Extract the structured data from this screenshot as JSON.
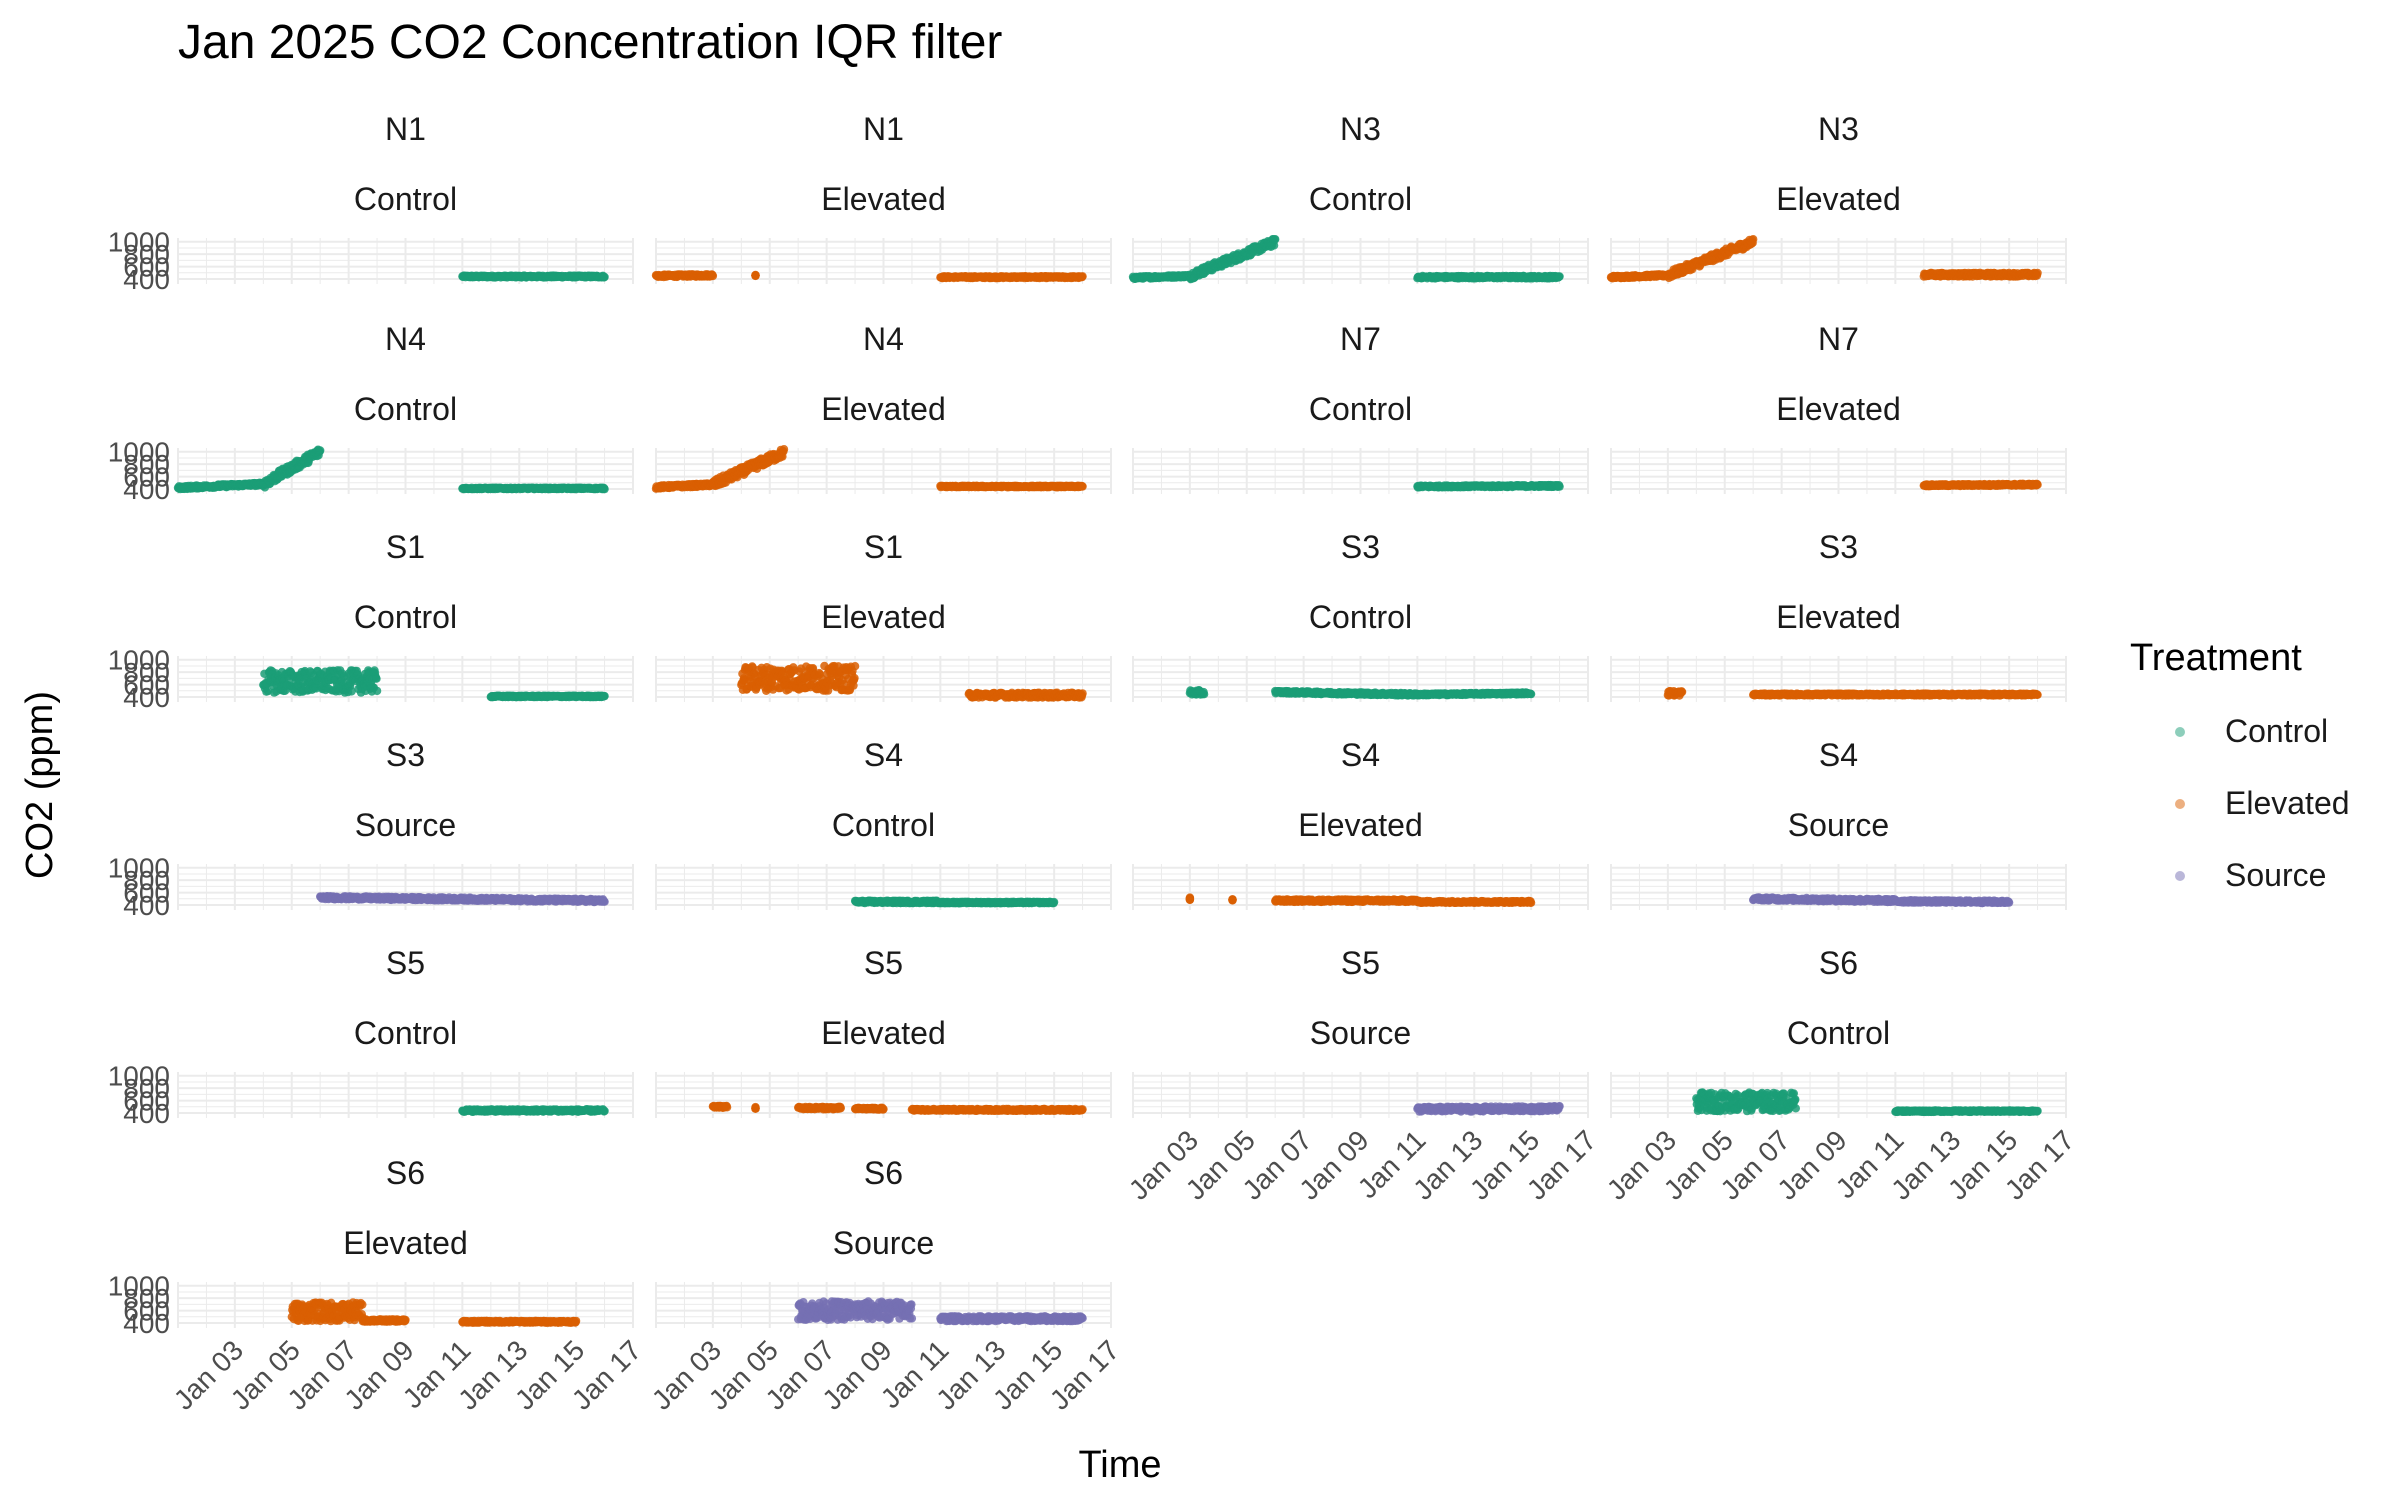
{
  "chart_data": {
    "type": "scatter",
    "title": "Jan 2025 CO2 Concentration IQR filter",
    "xlabel": "Time",
    "ylabel": "CO2 (ppm)",
    "x_ticks": [
      "Jan 03",
      "Jan 05",
      "Jan 07",
      "Jan 09",
      "Jan 11",
      "Jan 13",
      "Jan 15",
      "Jan 17"
    ],
    "y_ticks": [
      400,
      600,
      800,
      1000
    ],
    "y_tick_labels": [
      "400",
      "600",
      "800",
      "1000"
    ],
    "xlim": [
      "2025-01-01",
      "2025-01-17"
    ],
    "ylim": [
      400,
      1000
    ],
    "grid": true,
    "legend": {
      "title": "Treatment",
      "placement": "right",
      "entries": [
        {
          "name": "Control",
          "color": "#1b9e77"
        },
        {
          "name": "Elevated",
          "color": "#d95f02"
        },
        {
          "name": "Source",
          "color": "#7570b3"
        }
      ]
    },
    "panels": [
      {
        "site": "N1",
        "treatment": "Control",
        "segments": [
          {
            "x": [
              "2025-01-11",
              "2025-01-16"
            ],
            "y": [
              440,
              440
            ],
            "noise": 15,
            "type": "flat"
          }
        ]
      },
      {
        "site": "N1",
        "treatment": "Elevated",
        "segments": [
          {
            "x": [
              "2025-01-01",
              "2025-01-03"
            ],
            "y": [
              450,
              460
            ],
            "noise": 20,
            "type": "flat"
          },
          {
            "x": [
              "2025-01-04.5",
              "2025-01-04.5"
            ],
            "y": [
              460,
              460
            ],
            "noise": 10,
            "type": "flat"
          },
          {
            "x": [
              "2025-01-11",
              "2025-01-16"
            ],
            "y": [
              430,
              430
            ],
            "noise": 15,
            "type": "flat"
          }
        ]
      },
      {
        "site": "N3",
        "treatment": "Control",
        "segments": [
          {
            "x": [
              "2025-01-01",
              "2025-01-03"
            ],
            "y": [
              420,
              450
            ],
            "noise": 20,
            "type": "flat"
          },
          {
            "x": [
              "2025-01-03",
              "2025-01-06"
            ],
            "y": [
              450,
              1000
            ],
            "noise": 60,
            "type": "ramp"
          },
          {
            "x": [
              "2025-01-11",
              "2025-01-16"
            ],
            "y": [
              430,
              430
            ],
            "noise": 20,
            "type": "flat"
          }
        ]
      },
      {
        "site": "N3",
        "treatment": "Elevated",
        "segments": [
          {
            "x": [
              "2025-01-01",
              "2025-01-03"
            ],
            "y": [
              430,
              460
            ],
            "noise": 20,
            "type": "flat"
          },
          {
            "x": [
              "2025-01-03",
              "2025-01-06"
            ],
            "y": [
              460,
              1000
            ],
            "noise": 60,
            "type": "ramp"
          },
          {
            "x": [
              "2025-01-12",
              "2025-01-16"
            ],
            "y": [
              470,
              470
            ],
            "noise": 30,
            "type": "flat"
          }
        ]
      },
      {
        "site": "N4",
        "treatment": "Control",
        "segments": [
          {
            "x": [
              "2025-01-01",
              "2025-01-04"
            ],
            "y": [
              420,
              480
            ],
            "noise": 25,
            "type": "flat"
          },
          {
            "x": [
              "2025-01-04",
              "2025-01-06"
            ],
            "y": [
              480,
              1000
            ],
            "noise": 70,
            "type": "ramp"
          },
          {
            "x": [
              "2025-01-11",
              "2025-01-16"
            ],
            "y": [
              410,
              410
            ],
            "noise": 12,
            "type": "flat"
          }
        ]
      },
      {
        "site": "N4",
        "treatment": "Elevated",
        "segments": [
          {
            "x": [
              "2025-01-01",
              "2025-01-03"
            ],
            "y": [
              430,
              470
            ],
            "noise": 25,
            "type": "flat"
          },
          {
            "x": [
              "2025-01-03",
              "2025-01-05.5"
            ],
            "y": [
              470,
              990
            ],
            "noise": 70,
            "type": "ramp"
          },
          {
            "x": [
              "2025-01-11",
              "2025-01-16"
            ],
            "y": [
              440,
              440
            ],
            "noise": 12,
            "type": "flat"
          }
        ]
      },
      {
        "site": "N7",
        "treatment": "Control",
        "segments": [
          {
            "x": [
              "2025-01-11",
              "2025-01-16"
            ],
            "y": [
              440,
              450
            ],
            "noise": 15,
            "type": "flat"
          }
        ]
      },
      {
        "site": "N7",
        "treatment": "Elevated",
        "segments": [
          {
            "x": [
              "2025-01-12",
              "2025-01-16"
            ],
            "y": [
              460,
              470
            ],
            "noise": 15,
            "type": "flat"
          }
        ]
      },
      {
        "site": "S1",
        "treatment": "Control",
        "segments": [
          {
            "x": [
              "2025-01-04",
              "2025-01-08"
            ],
            "y": [
              650,
              650
            ],
            "noise": 180,
            "type": "flat"
          },
          {
            "x": [
              "2025-01-12",
              "2025-01-16"
            ],
            "y": [
              410,
              410
            ],
            "noise": 12,
            "type": "flat"
          }
        ]
      },
      {
        "site": "S1",
        "treatment": "Elevated",
        "segments": [
          {
            "x": [
              "2025-01-04",
              "2025-01-08"
            ],
            "y": [
              700,
              700
            ],
            "noise": 200,
            "type": "flat"
          },
          {
            "x": [
              "2025-01-12",
              "2025-01-16"
            ],
            "y": [
              430,
              430
            ],
            "noise": 40,
            "type": "flat"
          }
        ]
      },
      {
        "site": "S3",
        "treatment": "Control",
        "segments": [
          {
            "x": [
              "2025-01-03",
              "2025-01-03.5"
            ],
            "y": [
              470,
              470
            ],
            "noise": 40,
            "type": "flat"
          },
          {
            "x": [
              "2025-01-06",
              "2025-01-11"
            ],
            "y": [
              480,
              440
            ],
            "noise": 20,
            "type": "flat"
          },
          {
            "x": [
              "2025-01-11",
              "2025-01-15"
            ],
            "y": [
              440,
              460
            ],
            "noise": 15,
            "type": "flat"
          }
        ]
      },
      {
        "site": "S3",
        "treatment": "Elevated",
        "segments": [
          {
            "x": [
              "2025-01-03",
              "2025-01-03.5"
            ],
            "y": [
              460,
              460
            ],
            "noise": 40,
            "type": "flat"
          },
          {
            "x": [
              "2025-01-06",
              "2025-01-16"
            ],
            "y": [
              440,
              440
            ],
            "noise": 15,
            "type": "flat"
          }
        ]
      },
      {
        "site": "S3",
        "treatment": "Source",
        "segments": [
          {
            "x": [
              "2025-01-06",
              "2025-01-16"
            ],
            "y": [
              520,
              470
            ],
            "noise": 25,
            "type": "flat"
          }
        ]
      },
      {
        "site": "S4",
        "treatment": "Control",
        "segments": [
          {
            "x": [
              "2025-01-08",
              "2025-01-11"
            ],
            "y": [
              450,
              450
            ],
            "noise": 20,
            "type": "flat"
          },
          {
            "x": [
              "2025-01-11",
              "2025-01-15"
            ],
            "y": [
              440,
              440
            ],
            "noise": 12,
            "type": "flat"
          }
        ]
      },
      {
        "site": "S4",
        "treatment": "Elevated",
        "segments": [
          {
            "x": [
              "2025-01-03",
              "2025-01-03"
            ],
            "y": [
              500,
              500
            ],
            "noise": 20,
            "type": "flat"
          },
          {
            "x": [
              "2025-01-04.5",
              "2025-01-04.5"
            ],
            "y": [
              480,
              480
            ],
            "noise": 20,
            "type": "flat"
          },
          {
            "x": [
              "2025-01-06",
              "2025-01-11"
            ],
            "y": [
              470,
              470
            ],
            "noise": 20,
            "type": "flat"
          },
          {
            "x": [
              "2025-01-11",
              "2025-01-15"
            ],
            "y": [
              450,
              450
            ],
            "noise": 15,
            "type": "flat"
          }
        ]
      },
      {
        "site": "S4",
        "treatment": "Source",
        "segments": [
          {
            "x": [
              "2025-01-06",
              "2025-01-11"
            ],
            "y": [
              500,
              470
            ],
            "noise": 25,
            "type": "flat"
          },
          {
            "x": [
              "2025-01-11",
              "2025-01-15"
            ],
            "y": [
              460,
              450
            ],
            "noise": 20,
            "type": "flat"
          }
        ]
      },
      {
        "site": "S5",
        "treatment": "Control",
        "segments": [
          {
            "x": [
              "2025-01-11",
              "2025-01-16"
            ],
            "y": [
              440,
              440
            ],
            "noise": 20,
            "type": "flat"
          }
        ]
      },
      {
        "site": "S5",
        "treatment": "Elevated",
        "segments": [
          {
            "x": [
              "2025-01-03",
              "2025-01-03.5"
            ],
            "y": [
              500,
              500
            ],
            "noise": 15,
            "type": "flat"
          },
          {
            "x": [
              "2025-01-04.5",
              "2025-01-04.5"
            ],
            "y": [
              480,
              480
            ],
            "noise": 15,
            "type": "flat"
          },
          {
            "x": [
              "2025-01-06",
              "2025-01-07.5"
            ],
            "y": [
              480,
              480
            ],
            "noise": 20,
            "type": "flat"
          },
          {
            "x": [
              "2025-01-08",
              "2025-01-09"
            ],
            "y": [
              470,
              470
            ],
            "noise": 15,
            "type": "flat"
          },
          {
            "x": [
              "2025-01-10",
              "2025-01-16"
            ],
            "y": [
              450,
              450
            ],
            "noise": 15,
            "type": "flat"
          }
        ]
      },
      {
        "site": "S5",
        "treatment": "Source",
        "segments": [
          {
            "x": [
              "2025-01-11",
              "2025-01-16"
            ],
            "y": [
              460,
              470
            ],
            "noise": 40,
            "type": "flat"
          }
        ]
      },
      {
        "site": "S6",
        "treatment": "Control",
        "segments": [
          {
            "x": [
              "2025-01-04",
              "2025-01-07.5"
            ],
            "y": [
              580,
              580
            ],
            "noise": 150,
            "type": "flat"
          },
          {
            "x": [
              "2025-01-11",
              "2025-01-16"
            ],
            "y": [
              430,
              430
            ],
            "noise": 12,
            "type": "flat"
          }
        ]
      },
      {
        "site": "S6",
        "treatment": "Elevated",
        "segments": [
          {
            "x": [
              "2025-01-05",
              "2025-01-07.5"
            ],
            "y": [
              580,
              580
            ],
            "noise": 150,
            "type": "flat"
          },
          {
            "x": [
              "2025-01-07.5",
              "2025-01-09"
            ],
            "y": [
              440,
              440
            ],
            "noise": 20,
            "type": "flat"
          },
          {
            "x": [
              "2025-01-11",
              "2025-01-15"
            ],
            "y": [
              420,
              420
            ],
            "noise": 15,
            "type": "flat"
          }
        ]
      },
      {
        "site": "S6",
        "treatment": "Source",
        "segments": [
          {
            "x": [
              "2025-01-06",
              "2025-01-10"
            ],
            "y": [
              600,
              600
            ],
            "noise": 150,
            "type": "flat"
          },
          {
            "x": [
              "2025-01-11",
              "2025-01-16"
            ],
            "y": [
              470,
              470
            ],
            "noise": 40,
            "type": "flat"
          }
        ]
      }
    ]
  }
}
